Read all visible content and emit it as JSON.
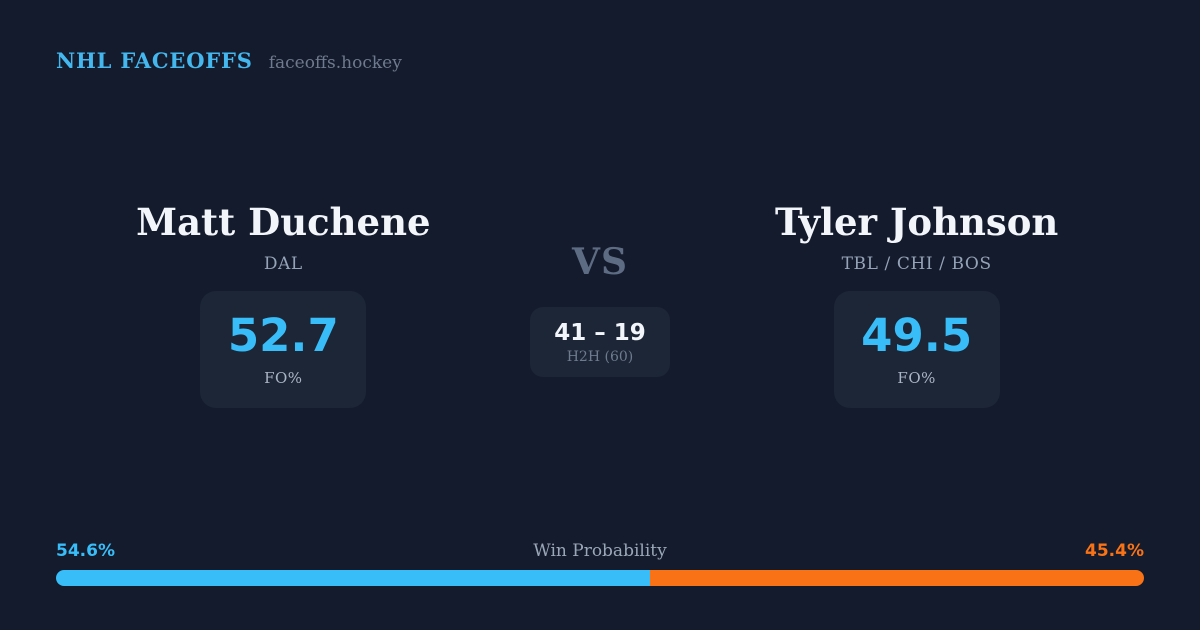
{
  "brand": {
    "title": "NHL FACEOFFS",
    "domain": "faceoffs.hockey"
  },
  "matchup": {
    "vs_label": "VS",
    "h2h": {
      "record": "41 – 19",
      "label": "H2H (60)"
    },
    "players": [
      {
        "name": "Matt Duchene",
        "teams": "DAL",
        "fo_pct": "52.7",
        "fo_label": "FO%"
      },
      {
        "name": "Tyler Johnson",
        "teams": "TBL / CHI / BOS",
        "fo_pct": "49.5",
        "fo_label": "FO%"
      }
    ]
  },
  "win_probability": {
    "label": "Win Probability",
    "left_pct_text": "54.6%",
    "right_pct_text": "45.4%",
    "left_value": 54.6,
    "right_value": 45.4,
    "left_color": "#38bdf8",
    "right_color": "#f97316"
  },
  "colors": {
    "background": "#131b2c",
    "card_background": "#1d2637",
    "brand_blue": "#45b7ef",
    "stat_blue": "#38bdf8",
    "orange": "#f97316",
    "text_white": "#f2f5f9",
    "text_gray": "#94a3b8"
  }
}
